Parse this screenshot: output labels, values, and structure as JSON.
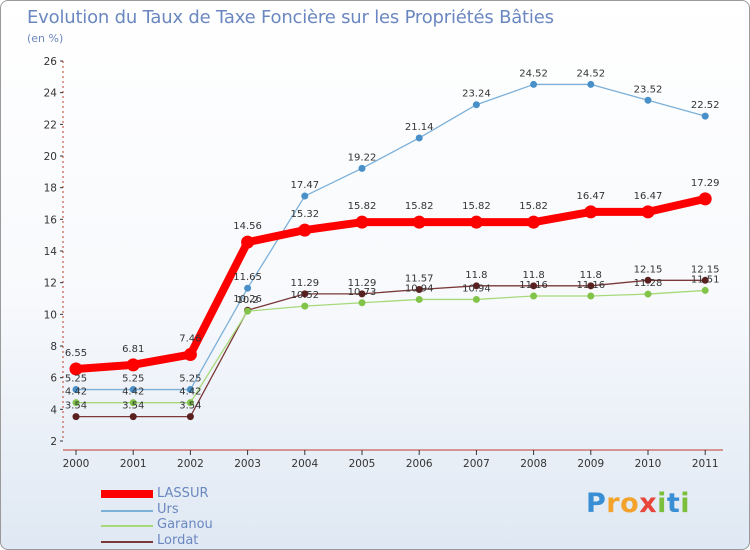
{
  "title": "Evolution du Taux de Taxe Foncière sur les Propriétés Bâties",
  "unit_label": "(en %)",
  "logo": {
    "letters": [
      {
        "ch": "P",
        "color": "#3a8fd4"
      },
      {
        "ch": "r",
        "color": "#f3a22b"
      },
      {
        "ch": "o",
        "color": "#f3a22b"
      },
      {
        "ch": "x",
        "color": "#e8463a"
      },
      {
        "ch": "i",
        "color": "#7bbf3a"
      },
      {
        "ch": "t",
        "color": "#3a8fd4"
      },
      {
        "ch": "i",
        "color": "#7bbf3a"
      }
    ]
  },
  "chart_data": {
    "type": "line",
    "title": "Evolution du Taux de Taxe Foncière sur les Propriétés Bâties",
    "ylabel": "(en %)",
    "xlabel": "",
    "ylim": [
      2,
      26
    ],
    "yticks": [
      2,
      4,
      6,
      8,
      10,
      12,
      14,
      16,
      18,
      20,
      22,
      24,
      26
    ],
    "grid": false,
    "legend_position": "bottom-left",
    "x": [
      "2000",
      "2001",
      "2002",
      "2003",
      "2004",
      "2005",
      "2006",
      "2007",
      "2008",
      "2009",
      "2010",
      "2011"
    ],
    "series": [
      {
        "name": "Lordat",
        "color": "#7a3838",
        "marker": "#5a2020",
        "width": 1.3,
        "radius": 3.5,
        "values": [
          3.54,
          3.54,
          3.54,
          10.26,
          11.29,
          11.29,
          11.57,
          11.8,
          11.8,
          11.8,
          12.15,
          12.15
        ],
        "labels": [
          "3.54",
          "3.54",
          "3.54",
          "10.26",
          "11.29",
          "11.29",
          "11.57",
          "11.8",
          "11.8",
          "11.8",
          "12.15",
          "12.15"
        ]
      },
      {
        "name": "Garanou",
        "color": "#a6d97a",
        "marker": "#82c44a",
        "width": 1.3,
        "radius": 3.5,
        "values": [
          4.42,
          4.42,
          4.42,
          10.2,
          10.52,
          10.73,
          10.94,
          10.94,
          11.16,
          11.16,
          11.28,
          11.51
        ],
        "labels": [
          "4.42",
          "4.42",
          "4.42",
          "10.2",
          "10.52",
          "10.73",
          "10.94",
          "10.94",
          "11.16",
          "11.16",
          "11.28",
          "11.51"
        ]
      },
      {
        "name": "Urs",
        "color": "#7cb0d8",
        "marker": "#4a90c8",
        "width": 1.3,
        "radius": 3.5,
        "values": [
          5.25,
          5.25,
          5.25,
          11.65,
          17.47,
          19.22,
          21.14,
          23.24,
          24.52,
          24.52,
          23.52,
          22.52
        ],
        "labels": [
          "5.25",
          "5.25",
          "5.25",
          "11.65",
          "17.47",
          "19.22",
          "21.14",
          "23.24",
          "24.52",
          "24.52",
          "23.52",
          "22.52"
        ]
      },
      {
        "name": "LASSUR",
        "color": "#ff0000",
        "marker": "#ff0000",
        "width": 8,
        "radius": 6.5,
        "values": [
          6.55,
          6.81,
          7.46,
          14.56,
          15.32,
          15.82,
          15.82,
          15.82,
          15.82,
          16.47,
          16.47,
          17.29
        ],
        "labels": [
          "6.55",
          "6.81",
          "7.46",
          "14.56",
          "15.32",
          "15.82",
          "15.82",
          "15.82",
          "15.82",
          "16.47",
          "16.47",
          "17.29"
        ]
      }
    ],
    "legend": [
      {
        "name": "LASSUR",
        "color": "#ff0000"
      },
      {
        "name": "Urs",
        "color": "#7cb0d8"
      },
      {
        "name": "Garanou",
        "color": "#a6d97a"
      },
      {
        "name": "Lordat",
        "color": "#7a3838"
      }
    ]
  }
}
